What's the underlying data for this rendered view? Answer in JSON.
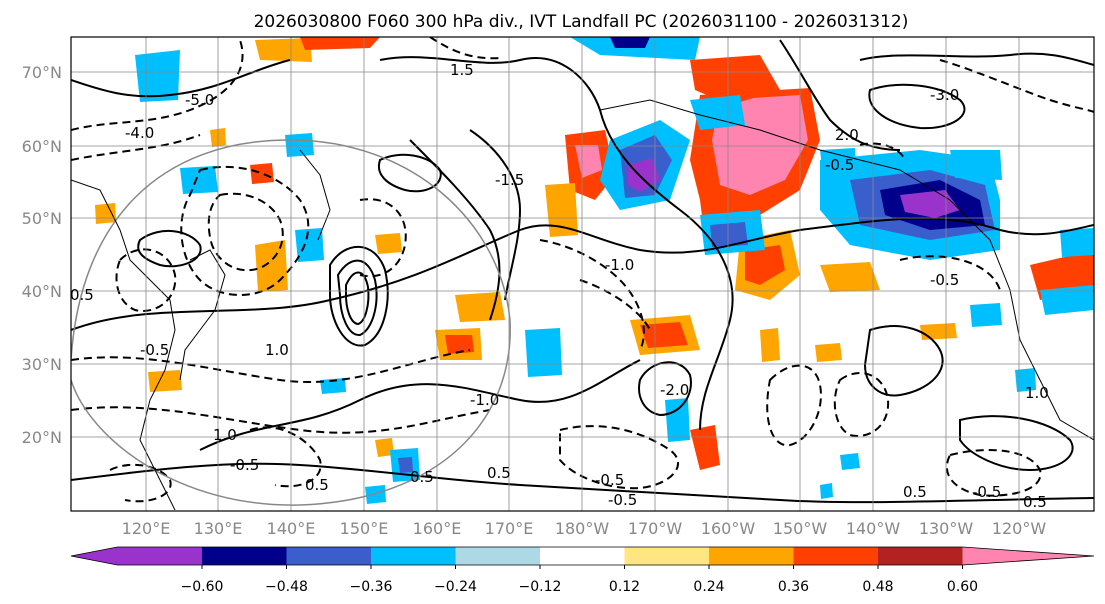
{
  "title": "2026030800 F060 300 hPa div., IVT Landfall PC (2026031100 - 2026031312)",
  "latitude_labels": [
    "70°N",
    "60°N",
    "50°N",
    "40°N",
    "30°N",
    "20°N"
  ],
  "longitude_labels": [
    "120°E",
    "130°E",
    "140°E",
    "150°E",
    "160°E",
    "170°E",
    "180°W",
    "170°W",
    "160°W",
    "150°W",
    "140°W",
    "130°W",
    "120°W"
  ],
  "colorbar": {
    "tick_labels": [
      "−0.60",
      "−0.48",
      "−0.36",
      "−0.24",
      "−0.12",
      "0.12",
      "0.24",
      "0.36",
      "0.48",
      "0.60"
    ],
    "colors": [
      "#9933cc",
      "#00008b",
      "#3a5fcd",
      "#00bfff",
      "#add8e6",
      "#ffffff",
      "#ffe680",
      "#ffa500",
      "#ff4000",
      "#b22222",
      "#ff85b0",
      "#ff85b0"
    ]
  },
  "contour_labels": [
    "0.5",
    "-0.5",
    "1.0",
    "-1.0",
    "-1.5",
    "2.0",
    "-2.0",
    "-3.0",
    "-4.0",
    "-5.0",
    "1.5",
    "0.5",
    "-0.5",
    "1.0",
    "-1.0",
    "-0.5",
    "0.5",
    "-0.5",
    "0.5",
    "-0.5",
    "1.0",
    "-0.5",
    "0.5",
    "-0.5",
    "0.5"
  ]
}
